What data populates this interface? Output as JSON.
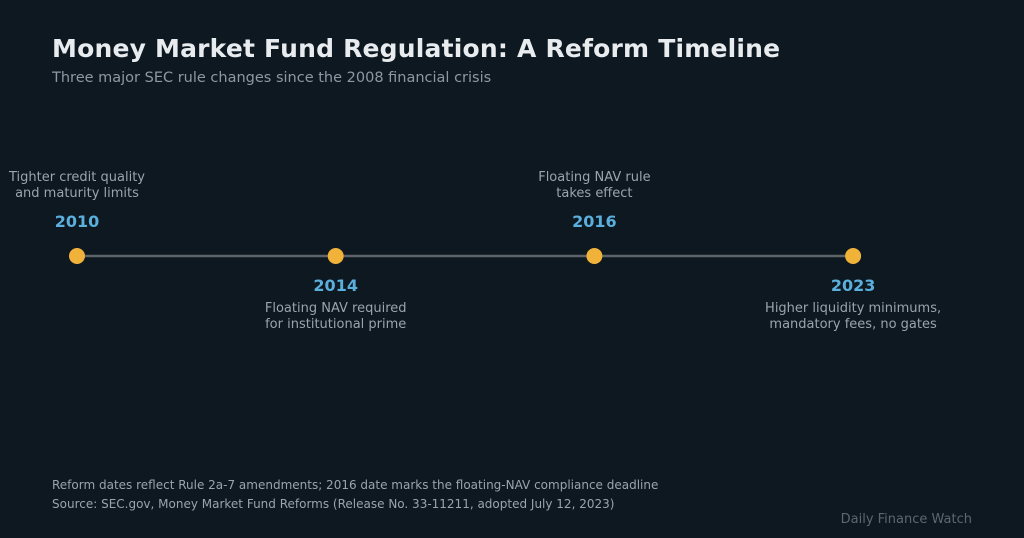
{
  "header": {
    "title": "Money Market Fund Regulation: A Reform Timeline",
    "subtitle": "Three major SEC rule changes since the 2008 financial crisis"
  },
  "footer": {
    "note": "Reform dates reflect Rule 2a-7 amendments; 2016 date marks the floating-NAV compliance deadline",
    "source": "Source: SEC.gov, Money Market Fund Reforms (Release No. 33-11211, adopted July 12, 2023)",
    "brand": "Daily Finance Watch"
  },
  "colors": {
    "background": "#0e1820",
    "axis": "#5c6369",
    "marker": "#f1b23a",
    "year": "#5aafdc",
    "description": "#9aa4ad"
  },
  "chart_data": {
    "type": "timeline",
    "events": [
      {
        "year": 2010,
        "label_position": "above",
        "description": [
          "Tighter credit quality",
          "and maturity limits"
        ]
      },
      {
        "year": 2014,
        "label_position": "below",
        "description": [
          "Floating NAV required",
          "for institutional prime"
        ]
      },
      {
        "year": 2016,
        "label_position": "above",
        "description": [
          "Floating NAV rule",
          "takes effect"
        ]
      },
      {
        "year": 2023,
        "label_position": "below",
        "description": [
          "Higher liquidity minimums,",
          "mandatory fees, no gates"
        ]
      }
    ]
  }
}
